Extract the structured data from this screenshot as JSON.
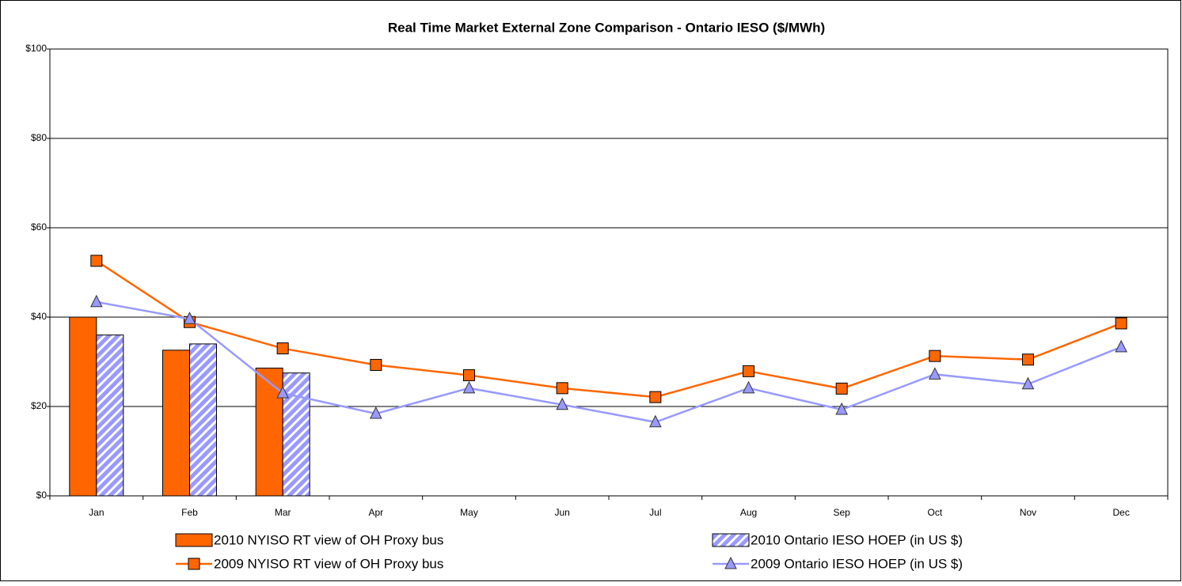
{
  "chart_data": {
    "type": "bar",
    "title": "Real Time Market External Zone Comparison - Ontario IESO ($/MWh)",
    "categories": [
      "Jan",
      "Feb",
      "Mar",
      "Apr",
      "May",
      "Jun",
      "Jul",
      "Aug",
      "Sep",
      "Oct",
      "Nov",
      "Dec"
    ],
    "ylim": [
      0,
      100
    ],
    "yticks": [
      {
        "value": 0,
        "label": "$0"
      },
      {
        "value": 20,
        "label": "$20"
      },
      {
        "value": 40,
        "label": "$40"
      },
      {
        "value": 60,
        "label": "$60"
      },
      {
        "value": 80,
        "label": "$80"
      },
      {
        "value": 100,
        "label": "$100"
      }
    ],
    "grid": true,
    "series": [
      {
        "name": "2010 NYISO RT view of OH Proxy bus",
        "type": "bar",
        "color": "#ff6600",
        "values": [
          40,
          32.6,
          28.6,
          null,
          null,
          null,
          null,
          null,
          null,
          null,
          null,
          null
        ]
      },
      {
        "name": "2010 Ontario IESO HOEP (in US $)",
        "type": "bar",
        "color": "#9999ff",
        "pattern": "hatch",
        "values": [
          36,
          34,
          27.5,
          null,
          null,
          null,
          null,
          null,
          null,
          null,
          null,
          null
        ]
      },
      {
        "name": "2009 NYISO RT view of OH Proxy bus",
        "type": "line",
        "color": "#ff6600",
        "marker": "square",
        "values": [
          52.6,
          38.9,
          33,
          29.3,
          27,
          24.1,
          22.1,
          27.9,
          24,
          31.3,
          30.5,
          38.6
        ]
      },
      {
        "name": "2009 Ontario IESO HOEP (in US $)",
        "type": "line",
        "color": "#9999ff",
        "marker": "triangle",
        "values": [
          43.4,
          39.6,
          23,
          18.4,
          24.1,
          20.4,
          16.5,
          24.1,
          19.3,
          27.2,
          25,
          33.3
        ]
      }
    ]
  }
}
